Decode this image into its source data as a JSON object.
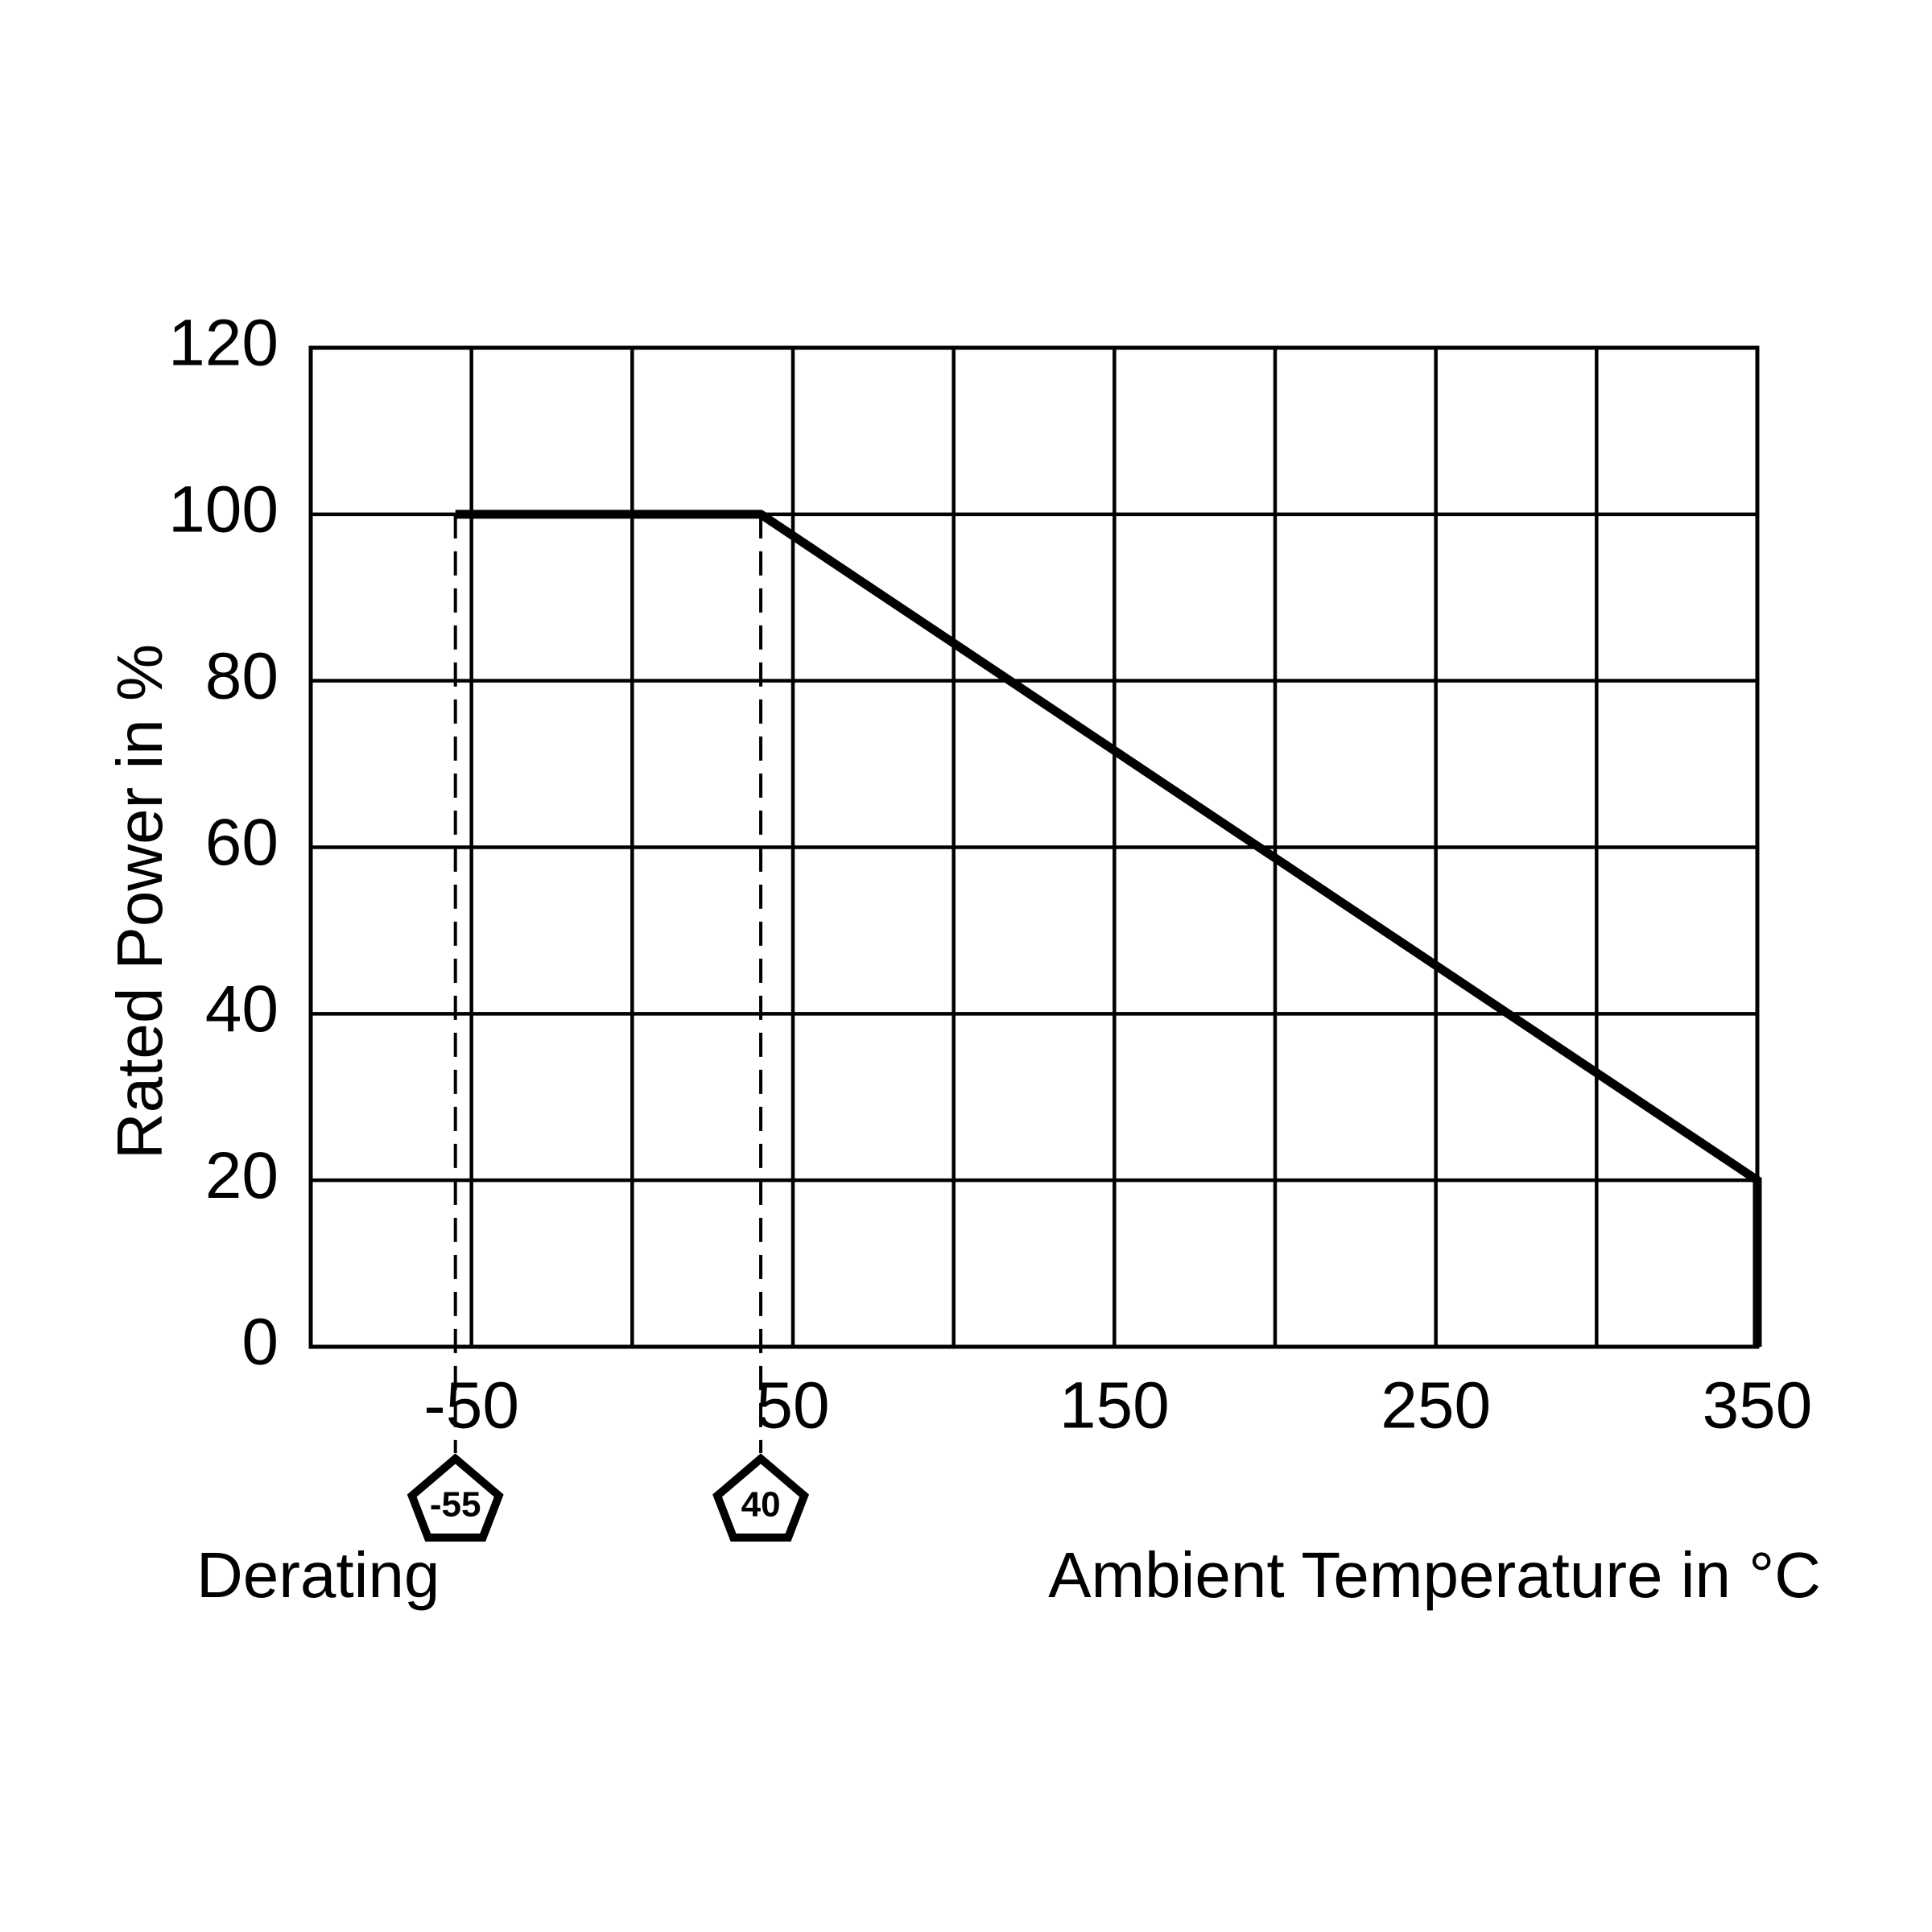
{
  "chart_data": {
    "type": "line",
    "xlabel": "Ambient Temperature in °C",
    "ylabel": "Rated Power in %",
    "x": [
      -55,
      40,
      350,
      350
    ],
    "series": [
      {
        "color": "#000000",
        "values": [
          100,
          100,
          20,
          0
        ]
      }
    ],
    "xlim": [
      -100,
      350
    ],
    "xticks": [
      -50,
      50,
      150,
      250,
      350
    ],
    "x_minor_ticks": [
      0,
      100,
      200,
      300
    ],
    "ylim": [
      0,
      120
    ],
    "yticks": [
      0,
      20,
      40,
      60,
      80,
      100,
      120
    ],
    "grid": true,
    "annotations": [
      {
        "x": -55,
        "label": "-55"
      },
      {
        "x": 40,
        "label": "40"
      }
    ],
    "annotation_caption": "Derating"
  }
}
